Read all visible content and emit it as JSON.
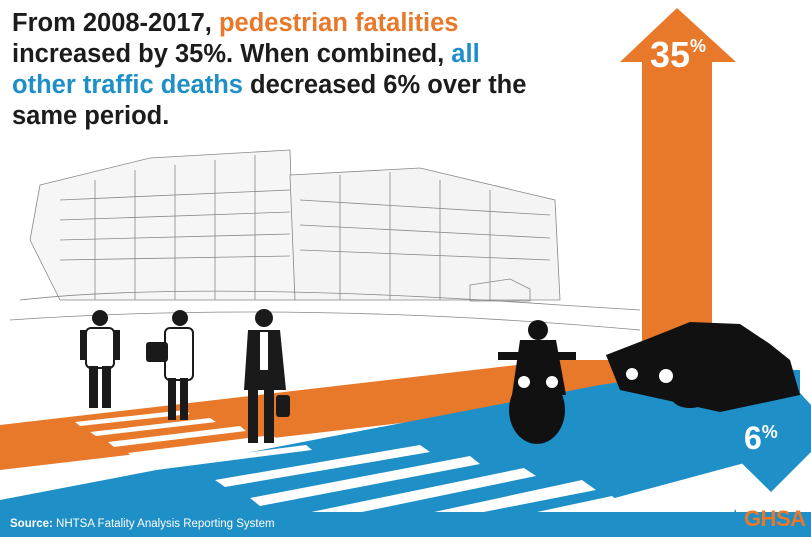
{
  "headline": {
    "part1": "From 2008-2017, ",
    "highlight_pedestrian": "pedestrian fatalities",
    "part2": " increased by 35%. When combined, ",
    "highlight_other": "all other traffic deaths",
    "part3": " decreased 6% over the same period."
  },
  "increase_arrow": {
    "value": "35",
    "unit": "%"
  },
  "decrease_arrow": {
    "value": "6",
    "unit": "%"
  },
  "source": {
    "label": "Source:",
    "text": " NHTSA Fatality Analysis Reporting System"
  },
  "logo": {
    "text": "GHSA",
    "mark": "star-icon"
  },
  "colors": {
    "orange": "#e8782a",
    "blue": "#1f8fc7",
    "dark": "#1c1c1c"
  }
}
